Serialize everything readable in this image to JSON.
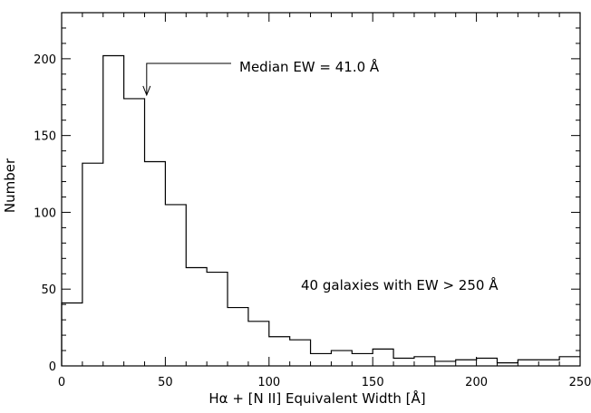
{
  "chart_data": {
    "type": "bar",
    "style": "step-histogram",
    "xlabel": "Hα + [N II] Equivalent Width [Å]",
    "ylabel": "Number",
    "xlim": [
      0,
      250
    ],
    "ylim": [
      0,
      230
    ],
    "x_ticks": [
      0,
      50,
      100,
      150,
      200,
      250
    ],
    "y_ticks": [
      0,
      50,
      100,
      150,
      200
    ],
    "bin_width": 10,
    "bins": [
      {
        "x0": 0,
        "x1": 10,
        "value": 41
      },
      {
        "x0": 10,
        "x1": 20,
        "value": 132
      },
      {
        "x0": 20,
        "x1": 30,
        "value": 202
      },
      {
        "x0": 30,
        "x1": 40,
        "value": 174
      },
      {
        "x0": 40,
        "x1": 50,
        "value": 133
      },
      {
        "x0": 50,
        "x1": 60,
        "value": 105
      },
      {
        "x0": 60,
        "x1": 70,
        "value": 64
      },
      {
        "x0": 70,
        "x1": 80,
        "value": 61
      },
      {
        "x0": 80,
        "x1": 90,
        "value": 38
      },
      {
        "x0": 90,
        "x1": 100,
        "value": 29
      },
      {
        "x0": 100,
        "x1": 110,
        "value": 19
      },
      {
        "x0": 110,
        "x1": 120,
        "value": 17
      },
      {
        "x0": 120,
        "x1": 130,
        "value": 8
      },
      {
        "x0": 130,
        "x1": 140,
        "value": 10
      },
      {
        "x0": 140,
        "x1": 150,
        "value": 8
      },
      {
        "x0": 150,
        "x1": 160,
        "value": 11
      },
      {
        "x0": 160,
        "x1": 170,
        "value": 5
      },
      {
        "x0": 170,
        "x1": 180,
        "value": 6
      },
      {
        "x0": 180,
        "x1": 190,
        "value": 3
      },
      {
        "x0": 190,
        "x1": 200,
        "value": 4
      },
      {
        "x0": 200,
        "x1": 210,
        "value": 5
      },
      {
        "x0": 210,
        "x1": 220,
        "value": 2
      },
      {
        "x0": 220,
        "x1": 230,
        "value": 4
      },
      {
        "x0": 230,
        "x1": 240,
        "value": 4
      },
      {
        "x0": 240,
        "x1": 250,
        "value": 6
      }
    ],
    "annotations": [
      {
        "text": "Median EW = 41.0 Å",
        "x": 41.0,
        "arrow": true
      },
      {
        "text": "40 galaxies with EW > 250 Å",
        "arrow": false
      }
    ]
  }
}
